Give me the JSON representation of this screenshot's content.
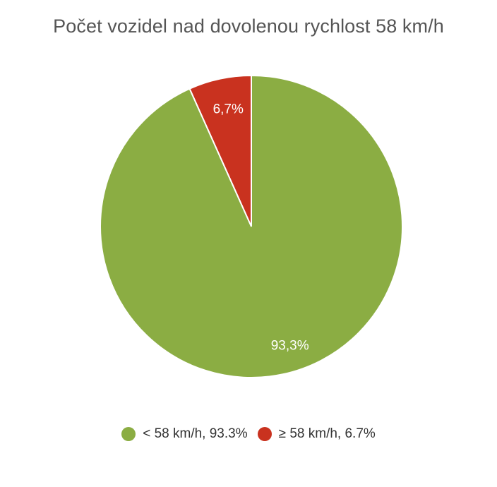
{
  "chart_data": {
    "type": "pie",
    "title": "Počet vozidel nad dovolenou rychlost 58 km/h",
    "slices": [
      {
        "name": "≥ 58 km/h",
        "value": 6.7,
        "label": "6,7%",
        "legend": "≥ 58 km/h, 6.7%",
        "color": "#c9321f"
      },
      {
        "name": "< 58 km/h",
        "value": 93.3,
        "label": "93,3%",
        "legend": "< 58 km/h, 93.3%",
        "color": "#8bad43"
      }
    ],
    "legend_order": [
      1,
      0
    ],
    "legend_position": "bottom"
  }
}
